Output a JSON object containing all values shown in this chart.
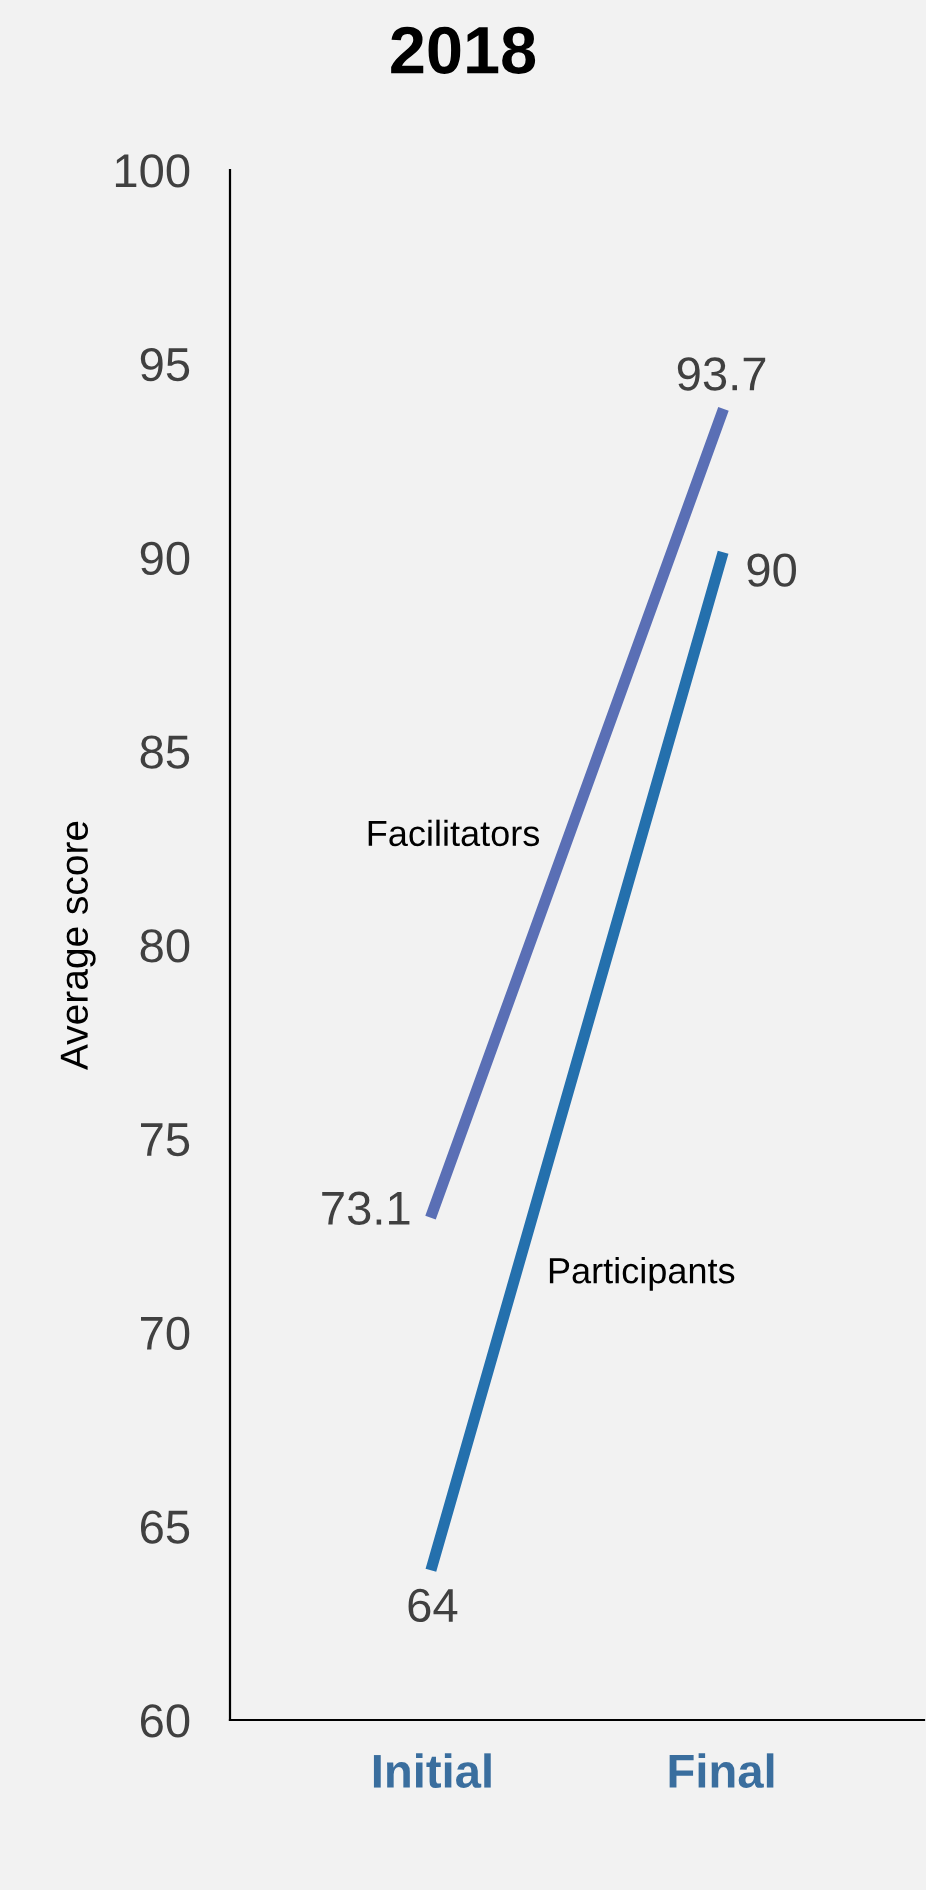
{
  "chart_data": {
    "type": "line",
    "title": "2018",
    "ylabel": "Average score",
    "categories": [
      "Initial",
      "Final"
    ],
    "series": [
      {
        "name": "Facilitators",
        "color": "#5a6fb5",
        "values": [
          73.1,
          93.7
        ]
      },
      {
        "name": "Participants",
        "color": "#2470ad",
        "values": [
          64,
          90
        ]
      }
    ],
    "ylim": [
      60,
      100
    ],
    "yticks": [
      60,
      65,
      70,
      75,
      80,
      85,
      90,
      95,
      100
    ],
    "data_labels": true,
    "grid": false,
    "legend": false,
    "marker": "none",
    "line_style": "solid"
  }
}
